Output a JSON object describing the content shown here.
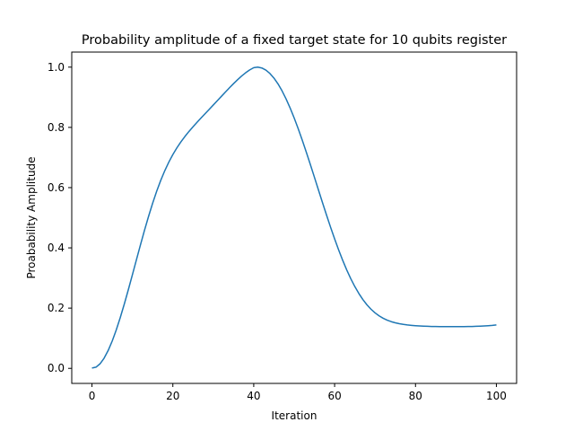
{
  "chart_data": {
    "type": "line",
    "title": "Probability amplitude of a fixed target state for 10 qubits register",
    "xlabel": "Iteration",
    "ylabel": "Proabability Amplitude",
    "xlim": [
      -5,
      105
    ],
    "ylim": [
      -0.05,
      1.05
    ],
    "xticks": [
      0,
      20,
      40,
      60,
      80,
      100
    ],
    "xtick_labels": [
      "0",
      "20",
      "40",
      "60",
      "80",
      "100"
    ],
    "yticks": [
      0.0,
      0.2,
      0.4,
      0.6,
      0.8,
      1.0
    ],
    "ytick_labels": [
      "0.0",
      "0.2",
      "0.4",
      "0.6",
      "0.8",
      "1.0"
    ],
    "grid": false,
    "series": [
      {
        "color": "#1f77b4",
        "x": [
          0,
          1,
          2,
          3,
          4,
          5,
          6,
          7,
          8,
          9,
          10,
          11,
          12,
          13,
          14,
          15,
          16,
          17,
          18,
          19,
          20,
          21,
          22,
          23,
          24,
          25,
          26,
          27,
          28,
          29,
          30,
          31,
          32,
          33,
          34,
          35,
          36,
          37,
          38,
          39,
          40,
          41,
          42,
          43,
          44,
          45,
          46,
          47,
          48,
          49,
          50,
          51,
          52,
          53,
          54,
          55,
          56,
          57,
          58,
          59,
          60,
          61,
          62,
          63,
          64,
          65,
          66,
          67,
          68,
          69,
          70,
          71,
          72,
          73,
          74,
          75,
          76,
          77,
          78,
          79,
          80,
          81,
          82,
          83,
          84,
          85,
          86,
          87,
          88,
          89,
          90,
          91,
          92,
          93,
          94,
          95,
          96,
          97,
          98,
          99,
          100
        ],
        "y": [
          0.001,
          0.0039,
          0.0152,
          0.0338,
          0.0591,
          0.0905,
          0.1273,
          0.1687,
          0.2138,
          0.2615,
          0.3109,
          0.3609,
          0.4105,
          0.4588,
          0.5049,
          0.5481,
          0.5879,
          0.6239,
          0.6561,
          0.6846,
          0.7098,
          0.7321,
          0.752,
          0.7701,
          0.7867,
          0.8022,
          0.8171,
          0.8315,
          0.8458,
          0.86,
          0.8743,
          0.8886,
          0.903,
          0.9173,
          0.9314,
          0.9451,
          0.9582,
          0.9704,
          0.9813,
          0.9907,
          0.9982,
          1.0,
          0.9972,
          0.9902,
          0.979,
          0.9637,
          0.9444,
          0.9213,
          0.8945,
          0.8644,
          0.8313,
          0.7955,
          0.7575,
          0.7177,
          0.6766,
          0.6347,
          0.5924,
          0.5503,
          0.5089,
          0.4685,
          0.4298,
          0.393,
          0.3585,
          0.3266,
          0.2975,
          0.2714,
          0.2483,
          0.2282,
          0.2109,
          0.1963,
          0.1842,
          0.1743,
          0.1663,
          0.16,
          0.155,
          0.1512,
          0.1482,
          0.1459,
          0.1441,
          0.1427,
          0.1416,
          0.1407,
          0.14,
          0.1395,
          0.1391,
          0.1388,
          0.1386,
          0.1385,
          0.1384,
          0.1384,
          0.1384,
          0.1385,
          0.1386,
          0.1388,
          0.1391,
          0.1395,
          0.14,
          0.1407,
          0.1416,
          0.1427,
          0.1441
        ]
      }
    ]
  }
}
